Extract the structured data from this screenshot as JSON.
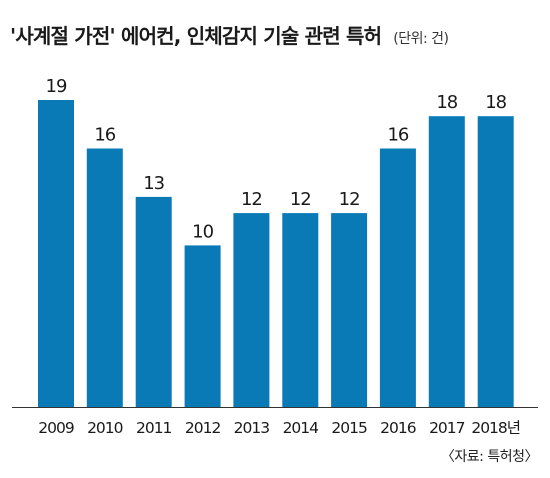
{
  "title": "'사계절 가전' 에어컨, 인체감지 기술 관련 특허",
  "unit_note": "(단위: 건)",
  "source": "〈자료: 특허청〉",
  "colors": {
    "bar": "#0a7ab7",
    "axis": "#333333",
    "text": "#1a1a1a"
  },
  "chart_data": {
    "type": "bar",
    "title": "'사계절 가전' 에어컨, 인체감지 기술 관련 특허",
    "xlabel": "",
    "ylabel": "",
    "categories": [
      "2009",
      "2010",
      "2011",
      "2012",
      "2013",
      "2014",
      "2015",
      "2016",
      "2017",
      "2018년"
    ],
    "values": [
      19,
      16,
      13,
      10,
      12,
      12,
      12,
      16,
      18,
      18
    ],
    "ylim": [
      0,
      19
    ],
    "grid": false,
    "legend": "none"
  }
}
